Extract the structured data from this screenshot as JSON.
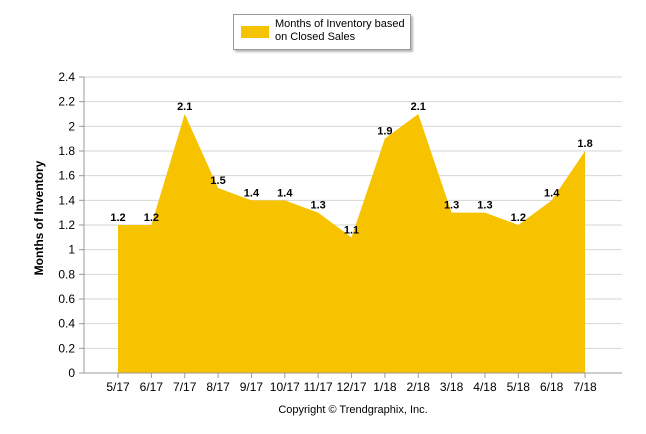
{
  "legend": {
    "label": "Months of Inventory based on Closed Sales",
    "color": "#f7c200"
  },
  "footer": {
    "copyright": "Copyright © Trendgraphix, Inc."
  },
  "chart_data": {
    "type": "area",
    "categories": [
      "5/17",
      "6/17",
      "7/17",
      "8/17",
      "9/17",
      "10/17",
      "11/17",
      "12/17",
      "1/18",
      "2/18",
      "3/18",
      "4/18",
      "5/18",
      "6/18",
      "7/18"
    ],
    "series": [
      {
        "name": "Months of Inventory based on Closed Sales",
        "values": [
          1.2,
          1.2,
          2.1,
          1.5,
          1.4,
          1.4,
          1.3,
          1.1,
          1.9,
          2.1,
          1.3,
          1.3,
          1.2,
          1.4,
          1.8
        ],
        "labels": [
          "1.2",
          "1.2",
          "2.1",
          "1.5",
          "1.4",
          "1.4",
          "1.3",
          "1.1",
          "1.9",
          "2.1",
          "1.3",
          "1.3",
          "1.2",
          "1.4",
          "1.8"
        ],
        "color": "#f7c200"
      }
    ],
    "title": "",
    "xlabel": "",
    "ylabel": "Months of Inventory",
    "ylim": [
      0,
      2.4
    ],
    "yticks": [
      0,
      0.2,
      0.4,
      0.6,
      0.8,
      1,
      1.2,
      1.4,
      1.6,
      1.8,
      2,
      2.2,
      2.4
    ],
    "ytick_labels": [
      "0",
      "0.2",
      "0.4",
      "0.6",
      "0.8",
      "1",
      "1.2",
      "1.4",
      "1.6",
      "1.8",
      "2",
      "2.2",
      "2.4"
    ],
    "grid": true,
    "legend_position": "top-center"
  }
}
